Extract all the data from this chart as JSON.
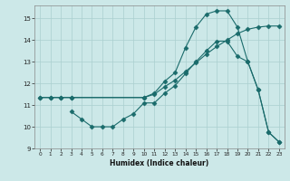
{
  "xlabel": "Humidex (Indice chaleur)",
  "bg_color": "#cce8e8",
  "line_color": "#1a6b6b",
  "grid_color": "#aacfcf",
  "xlim": [
    -0.5,
    23.5
  ],
  "ylim": [
    9,
    15.6
  ],
  "yticks": [
    9,
    10,
    11,
    12,
    13,
    14,
    15
  ],
  "xticks": [
    0,
    1,
    2,
    3,
    4,
    5,
    6,
    7,
    8,
    9,
    10,
    11,
    12,
    13,
    14,
    15,
    16,
    17,
    18,
    19,
    20,
    21,
    22,
    23
  ],
  "line1_x": [
    0,
    1,
    2,
    3,
    10,
    11,
    12,
    13,
    14,
    15,
    16,
    17,
    18,
    19,
    20,
    21,
    22,
    23
  ],
  "line1_y": [
    11.35,
    11.35,
    11.35,
    11.35,
    11.35,
    11.55,
    12.1,
    12.5,
    13.65,
    14.6,
    15.2,
    15.35,
    15.35,
    14.6,
    13.0,
    11.7,
    9.75,
    9.3
  ],
  "line2_x": [
    0,
    1,
    2,
    3,
    10,
    11,
    12,
    13,
    14,
    15,
    16,
    17,
    18,
    19,
    20,
    21,
    22,
    23
  ],
  "line2_y": [
    11.35,
    11.35,
    11.35,
    11.35,
    11.35,
    11.5,
    11.85,
    12.15,
    12.55,
    12.95,
    13.35,
    13.7,
    14.0,
    14.3,
    14.5,
    14.6,
    14.65,
    14.65
  ],
  "line3_x": [
    3,
    4,
    5,
    6,
    7,
    8,
    9,
    10,
    11,
    12,
    13,
    14,
    15,
    16,
    17,
    18,
    19,
    20,
    21,
    22,
    23
  ],
  "line3_y": [
    10.7,
    10.35,
    10.0,
    10.0,
    10.0,
    10.35,
    10.6,
    11.1,
    11.1,
    11.55,
    11.9,
    12.45,
    13.0,
    13.5,
    13.95,
    13.95,
    13.25,
    13.0,
    11.7,
    9.75,
    9.3
  ]
}
